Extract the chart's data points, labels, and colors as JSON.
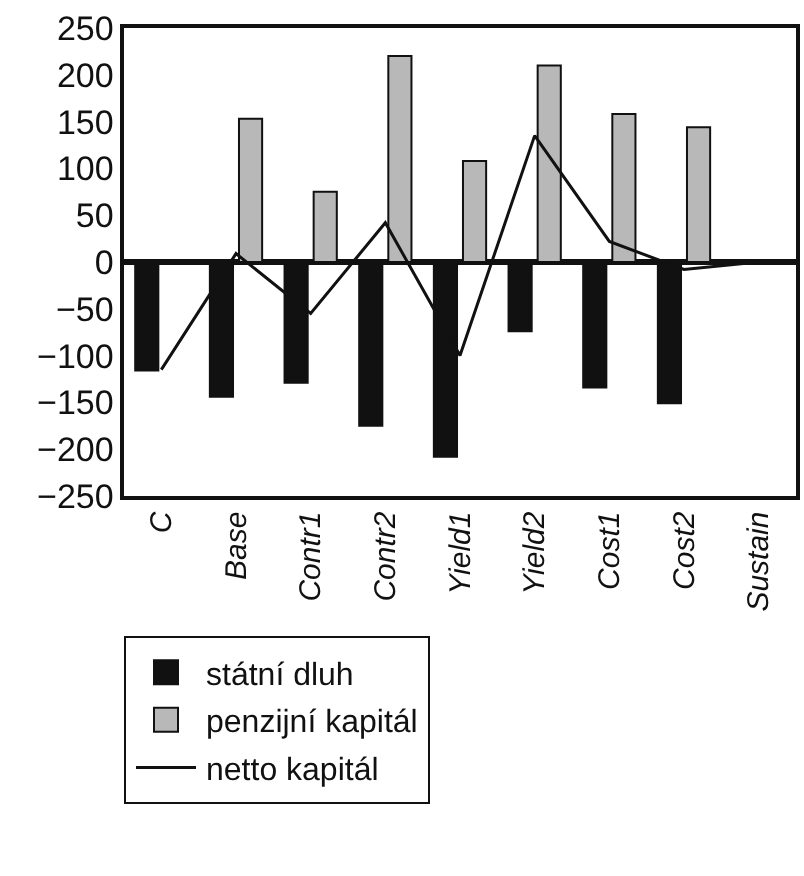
{
  "chart_data": {
    "type": "bar",
    "categories": [
      "C",
      "Base",
      "Contr1",
      "Contr2",
      "Yield1",
      "Yield2",
      "Cost1",
      "Cost2",
      "Sustain"
    ],
    "series": [
      {
        "name": "státní dluh",
        "color": "#111111",
        "values": [
          -116,
          -144,
          -129,
          -175,
          -208,
          -74,
          -134,
          -151,
          null
        ]
      },
      {
        "name": "penzijní kapitál",
        "color": "#b8b8b8",
        "values": [
          null,
          153,
          75,
          220,
          108,
          210,
          158,
          144,
          null
        ]
      },
      {
        "name": "netto kapitál",
        "type": "line",
        "color": "#111111",
        "values": [
          -115,
          9,
          -55,
          42,
          -100,
          135,
          22,
          -8,
          0
        ]
      }
    ],
    "ylim": [
      -250,
      250
    ],
    "yticks": [
      -250,
      -200,
      -150,
      -100,
      -50,
      0,
      50,
      100,
      150,
      200,
      250
    ],
    "legend": "bottom left",
    "marker": "none",
    "line_style": "solid"
  }
}
